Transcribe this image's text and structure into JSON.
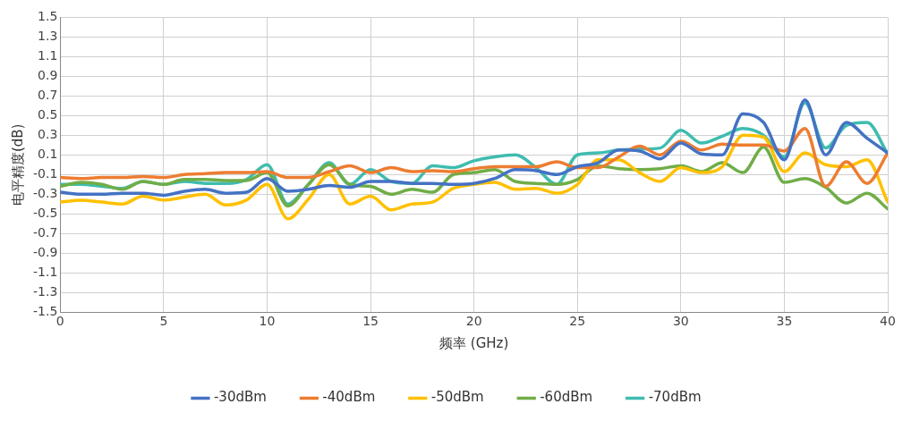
{
  "chart_data": {
    "type": "line",
    "xlabel": "频率 (GHz)",
    "ylabel": "电平精度(dB)",
    "x": [
      0,
      1,
      2,
      3,
      4,
      5,
      6,
      7,
      8,
      9,
      10,
      11,
      12,
      13,
      14,
      15,
      16,
      17,
      18,
      19,
      20,
      21,
      22,
      23,
      24,
      25,
      26,
      27,
      28,
      29,
      30,
      31,
      32,
      33,
      34,
      35,
      36,
      37,
      38,
      39,
      40
    ],
    "xlim": [
      0,
      40
    ],
    "xticks": [
      0,
      5,
      10,
      15,
      20,
      25,
      30,
      35,
      40
    ],
    "ylim": [
      -1.5,
      1.5
    ],
    "yticks": [
      -1.5,
      -1.3,
      -1.1,
      -0.9,
      -0.7,
      -0.5,
      -0.3,
      -0.1,
      0.1,
      0.3,
      0.5,
      0.7,
      0.9,
      1.1,
      1.3,
      1.5
    ],
    "grid": true,
    "legend": "bottom",
    "marker": "none",
    "line_style": "solid",
    "series": [
      {
        "name": "-30dBm",
        "color": "#4472c4",
        "values": [
          -0.28,
          -0.3,
          -0.3,
          -0.29,
          -0.29,
          -0.31,
          -0.27,
          -0.25,
          -0.29,
          -0.28,
          -0.14,
          -0.27,
          -0.25,
          -0.21,
          -0.23,
          -0.17,
          -0.17,
          -0.19,
          -0.19,
          -0.2,
          -0.19,
          -0.14,
          -0.05,
          -0.06,
          -0.1,
          -0.02,
          0.02,
          0.15,
          0.14,
          0.06,
          0.22,
          0.11,
          0.1,
          0.52,
          0.43,
          0.05,
          0.66,
          0.1,
          0.43,
          0.27,
          0.12
        ]
      },
      {
        "name": "-40dBm",
        "color": "#ed7d31",
        "values": [
          -0.13,
          -0.14,
          -0.13,
          -0.13,
          -0.12,
          -0.13,
          -0.1,
          -0.09,
          -0.08,
          -0.08,
          -0.07,
          -0.13,
          -0.13,
          -0.07,
          -0.01,
          -0.08,
          -0.03,
          -0.07,
          -0.06,
          -0.07,
          -0.04,
          -0.02,
          -0.02,
          -0.02,
          0.03,
          -0.03,
          -0.03,
          0.08,
          0.19,
          0.1,
          0.24,
          0.15,
          0.21,
          0.2,
          0.2,
          0.14,
          0.37,
          -0.22,
          0.03,
          -0.19,
          0.12
        ]
      },
      {
        "name": "-50dBm",
        "color": "#ffc000",
        "values": [
          -0.38,
          -0.36,
          -0.38,
          -0.4,
          -0.32,
          -0.36,
          -0.33,
          -0.3,
          -0.41,
          -0.36,
          -0.2,
          -0.55,
          -0.35,
          -0.1,
          -0.4,
          -0.32,
          -0.46,
          -0.4,
          -0.38,
          -0.24,
          -0.2,
          -0.18,
          -0.25,
          -0.24,
          -0.29,
          -0.2,
          0.05,
          0.05,
          -0.08,
          -0.17,
          -0.03,
          -0.08,
          -0.02,
          0.3,
          0.28,
          -0.07,
          0.12,
          0.0,
          -0.02,
          0.05,
          -0.38
        ]
      },
      {
        "name": "-60dBm",
        "color": "#70ad47",
        "values": [
          -0.22,
          -0.18,
          -0.2,
          -0.25,
          -0.17,
          -0.2,
          -0.15,
          -0.15,
          -0.16,
          -0.16,
          -0.08,
          -0.42,
          -0.2,
          0.0,
          -0.2,
          -0.22,
          -0.3,
          -0.25,
          -0.28,
          -0.1,
          -0.08,
          -0.05,
          -0.17,
          -0.19,
          -0.2,
          -0.15,
          -0.01,
          -0.04,
          -0.05,
          -0.04,
          -0.01,
          -0.07,
          0.02,
          -0.08,
          0.18,
          -0.18,
          -0.14,
          -0.23,
          -0.39,
          -0.29,
          -0.45
        ]
      },
      {
        "name": "-70dBm",
        "color": "#3fbcb0",
        "values": [
          -0.2,
          -0.2,
          -0.22,
          -0.24,
          -0.17,
          -0.2,
          -0.17,
          -0.19,
          -0.19,
          -0.15,
          0.0,
          -0.4,
          -0.2,
          0.02,
          -0.2,
          -0.05,
          -0.17,
          -0.19,
          -0.01,
          -0.03,
          0.04,
          0.08,
          0.1,
          -0.03,
          -0.2,
          0.1,
          0.12,
          0.15,
          0.16,
          0.17,
          0.35,
          0.22,
          0.29,
          0.37,
          0.3,
          0.08,
          0.63,
          0.17,
          0.4,
          0.43,
          0.11
        ]
      }
    ]
  }
}
